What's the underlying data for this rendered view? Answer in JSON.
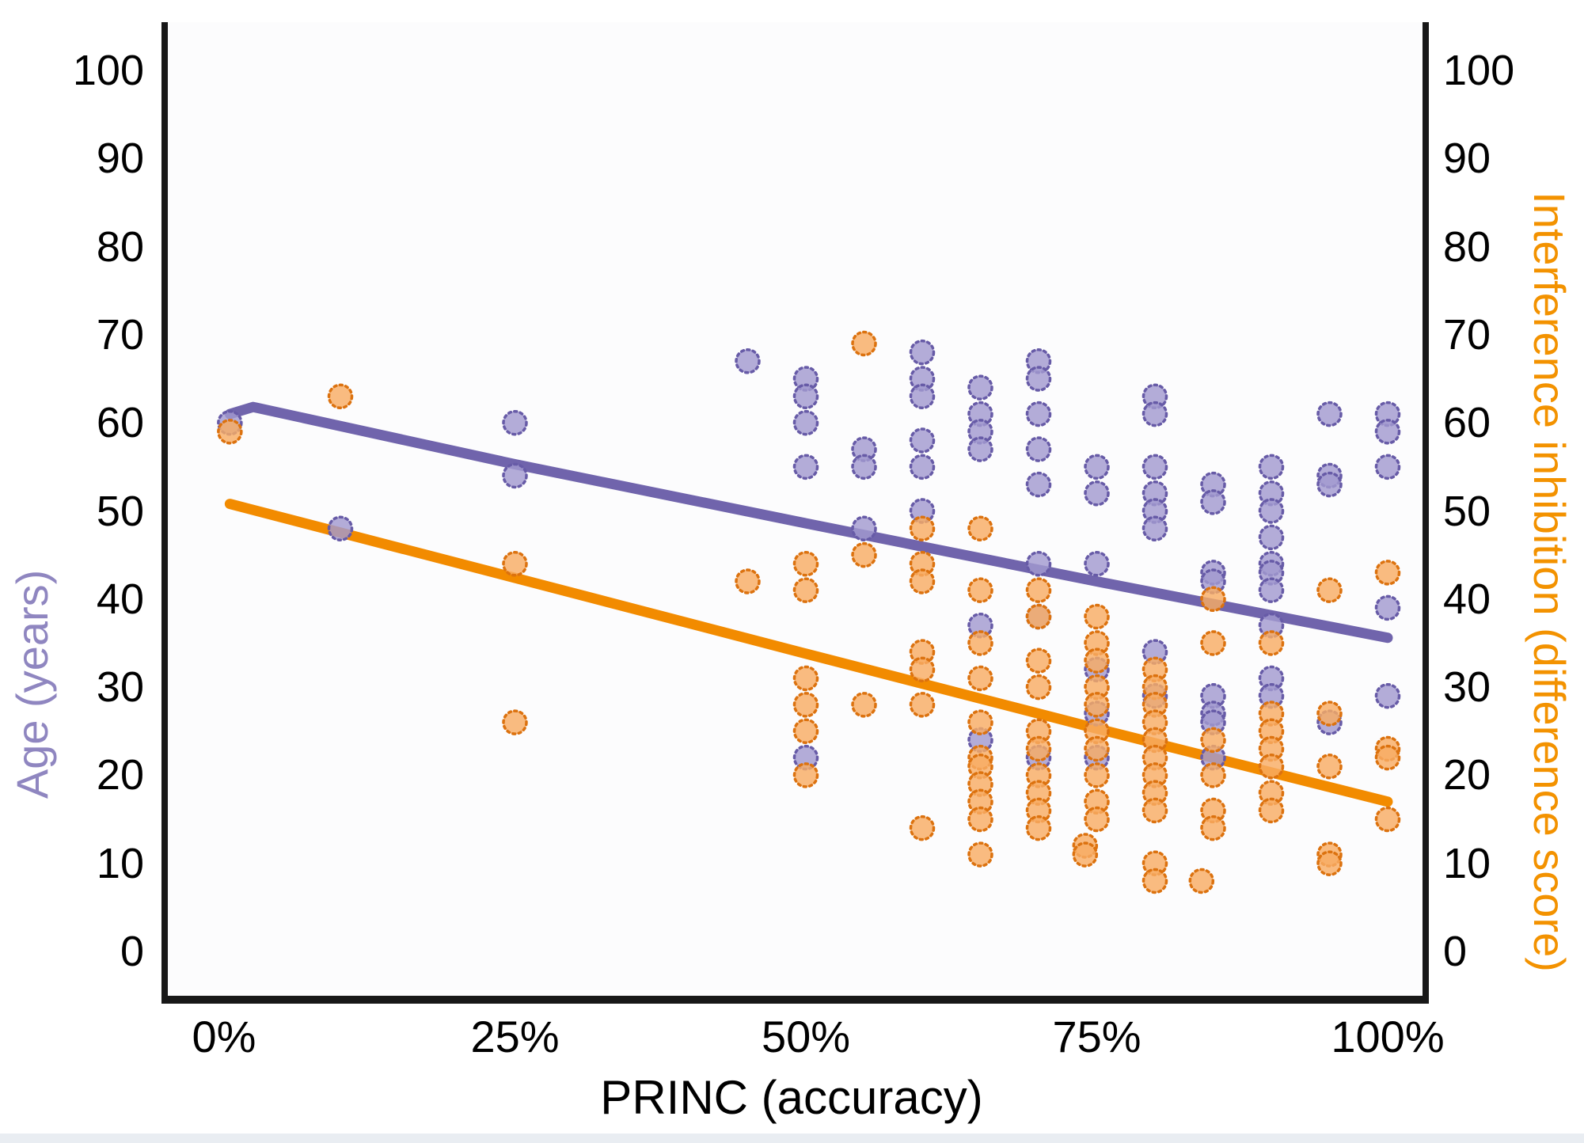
{
  "chart_data": {
    "type": "scatter",
    "title": "",
    "xlabel": "PRINC (accuracy)",
    "ylabel_left": "Age (years)",
    "ylabel_right": "Interference inhibition (difference score)",
    "xlim": [
      0,
      100
    ],
    "ylim": [
      0,
      100
    ],
    "grid": false,
    "legend_position": "none",
    "x_ticks": [
      {
        "value": 0,
        "label": "0%"
      },
      {
        "value": 25,
        "label": "25%"
      },
      {
        "value": 50,
        "label": "50%"
      },
      {
        "value": 75,
        "label": "75%"
      },
      {
        "value": 100,
        "label": "100%"
      }
    ],
    "y_ticks_left": [
      "100",
      "90",
      "80",
      "70",
      "60",
      "50",
      "40",
      "30",
      "20",
      "10",
      "0"
    ],
    "y_ticks_left_values": [
      100,
      90,
      80,
      70,
      60,
      50,
      40,
      30,
      20,
      10,
      0
    ],
    "y_ticks_right": [
      "100",
      "90",
      "80",
      "70",
      "60",
      "50",
      "40",
      "30",
      "20",
      "10",
      "0"
    ],
    "y_ticks_right_values": [
      100,
      90,
      80,
      70,
      60,
      50,
      40,
      30,
      20,
      10,
      0
    ],
    "colors": {
      "age_fill": "#a29ad0",
      "age_edge": "#675ba7",
      "age_trend": "#7064ac",
      "interference_fill": "#f8ac64",
      "interference_edge": "#dc720f",
      "interference_trend": "#f28b00",
      "axis": "#181818",
      "left_title": "#8f86c0",
      "right_title": "#f39200",
      "tick_text": "#000000"
    },
    "series": [
      {
        "name": "Age (years)",
        "axis": "left",
        "marker": "dotted-edge-circle",
        "points": [
          [
            0.5,
            60
          ],
          [
            10,
            48
          ],
          [
            25,
            60
          ],
          [
            25,
            54
          ],
          [
            45,
            67
          ],
          [
            50,
            65
          ],
          [
            50,
            63
          ],
          [
            50,
            60
          ],
          [
            50,
            55
          ],
          [
            50,
            22
          ],
          [
            55,
            57
          ],
          [
            55,
            55
          ],
          [
            55,
            48
          ],
          [
            60,
            68
          ],
          [
            60,
            65
          ],
          [
            60,
            63
          ],
          [
            60,
            58
          ],
          [
            60,
            55
          ],
          [
            60,
            50
          ],
          [
            65,
            64
          ],
          [
            65,
            61
          ],
          [
            65,
            59
          ],
          [
            65,
            57
          ],
          [
            65,
            37
          ],
          [
            65,
            24
          ],
          [
            70,
            67
          ],
          [
            70,
            65
          ],
          [
            70,
            61
          ],
          [
            70,
            57
          ],
          [
            70,
            53
          ],
          [
            70,
            44
          ],
          [
            70,
            38
          ],
          [
            70,
            22
          ],
          [
            75,
            55
          ],
          [
            75,
            52
          ],
          [
            75,
            44
          ],
          [
            75,
            32
          ],
          [
            75,
            27
          ],
          [
            75,
            22
          ],
          [
            80,
            63
          ],
          [
            80,
            61
          ],
          [
            80,
            55
          ],
          [
            80,
            52
          ],
          [
            80,
            50
          ],
          [
            80,
            48
          ],
          [
            80,
            34
          ],
          [
            80,
            29
          ],
          [
            85,
            53
          ],
          [
            85,
            51
          ],
          [
            85,
            43
          ],
          [
            85,
            42
          ],
          [
            85,
            29
          ],
          [
            85,
            27
          ],
          [
            85,
            26
          ],
          [
            85,
            22
          ],
          [
            90,
            55
          ],
          [
            90,
            52
          ],
          [
            90,
            50
          ],
          [
            90,
            47
          ],
          [
            90,
            44
          ],
          [
            90,
            43
          ],
          [
            90,
            41
          ],
          [
            90,
            37
          ],
          [
            90,
            31
          ],
          [
            90,
            29
          ],
          [
            95,
            61
          ],
          [
            95,
            54
          ],
          [
            95,
            53
          ],
          [
            95,
            26
          ],
          [
            100,
            61
          ],
          [
            100,
            59
          ],
          [
            100,
            55
          ],
          [
            100,
            39
          ],
          [
            100,
            29
          ]
        ]
      },
      {
        "name": "Interference inhibition (difference score)",
        "axis": "right",
        "marker": "dotted-edge-circle",
        "points": [
          [
            0.5,
            59
          ],
          [
            10,
            63
          ],
          [
            25,
            44
          ],
          [
            25,
            26
          ],
          [
            45,
            42
          ],
          [
            50,
            44
          ],
          [
            50,
            41
          ],
          [
            50,
            31
          ],
          [
            50,
            28
          ],
          [
            50,
            25
          ],
          [
            50,
            20
          ],
          [
            55,
            69
          ],
          [
            55,
            45
          ],
          [
            55,
            28
          ],
          [
            60,
            48
          ],
          [
            60,
            44
          ],
          [
            60,
            42
          ],
          [
            60,
            34
          ],
          [
            60,
            32
          ],
          [
            60,
            28
          ],
          [
            60,
            14
          ],
          [
            65,
            48
          ],
          [
            65,
            41
          ],
          [
            65,
            35
          ],
          [
            65,
            31
          ],
          [
            65,
            26
          ],
          [
            65,
            22
          ],
          [
            65,
            21
          ],
          [
            65,
            19
          ],
          [
            65,
            17
          ],
          [
            65,
            15
          ],
          [
            65,
            11
          ],
          [
            70,
            41
          ],
          [
            70,
            38
          ],
          [
            70,
            33
          ],
          [
            70,
            30
          ],
          [
            70,
            25
          ],
          [
            70,
            23
          ],
          [
            70,
            20
          ],
          [
            70,
            18
          ],
          [
            70,
            16
          ],
          [
            70,
            14
          ],
          [
            75,
            38
          ],
          [
            75,
            35
          ],
          [
            75,
            33
          ],
          [
            75,
            30
          ],
          [
            75,
            28
          ],
          [
            75,
            25
          ],
          [
            75,
            23
          ],
          [
            75,
            20
          ],
          [
            75,
            17
          ],
          [
            75,
            15
          ],
          [
            74,
            12
          ],
          [
            74,
            11
          ],
          [
            80,
            32
          ],
          [
            80,
            30
          ],
          [
            80,
            28
          ],
          [
            80,
            26
          ],
          [
            80,
            24
          ],
          [
            80,
            22
          ],
          [
            80,
            20
          ],
          [
            80,
            18
          ],
          [
            80,
            16
          ],
          [
            80,
            10
          ],
          [
            80,
            8
          ],
          [
            85,
            40
          ],
          [
            85,
            35
          ],
          [
            85,
            24
          ],
          [
            85,
            20
          ],
          [
            85,
            16
          ],
          [
            85,
            14
          ],
          [
            84,
            8
          ],
          [
            90,
            35
          ],
          [
            90,
            27
          ],
          [
            90,
            25
          ],
          [
            90,
            23
          ],
          [
            90,
            21
          ],
          [
            90,
            18
          ],
          [
            90,
            16
          ],
          [
            95,
            41
          ],
          [
            95,
            27
          ],
          [
            95,
            21
          ],
          [
            95,
            11
          ],
          [
            95,
            10
          ],
          [
            100,
            43
          ],
          [
            100,
            23
          ],
          [
            100,
            22
          ],
          [
            100,
            15
          ]
        ]
      }
    ],
    "trend_lines": [
      {
        "name": "Age trend",
        "series": "Age (years)",
        "points": [
          [
            0.5,
            61.0
          ],
          [
            2.5,
            61.8
          ],
          [
            25,
            55.3
          ],
          [
            50,
            48.6
          ],
          [
            75,
            42.0
          ],
          [
            100,
            35.6
          ]
        ]
      },
      {
        "name": "Interference trend",
        "series": "Interference inhibition (difference score)",
        "points": [
          [
            0.5,
            50.8
          ],
          [
            25,
            42.4
          ],
          [
            50,
            33.8
          ],
          [
            75,
            25.3
          ],
          [
            100,
            17.0
          ]
        ]
      }
    ]
  }
}
